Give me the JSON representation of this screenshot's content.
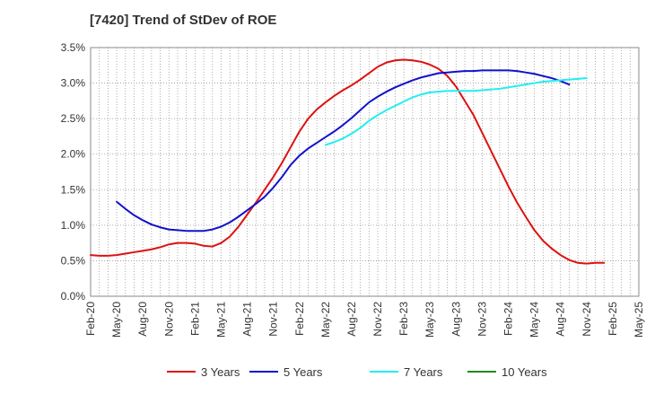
{
  "chart_data": {
    "type": "line",
    "title": "[7420]  Trend of StDev of ROE",
    "xlabel": "",
    "ylabel": "",
    "x_ticks": [
      "Feb-20",
      "May-20",
      "Aug-20",
      "Nov-20",
      "Feb-21",
      "May-21",
      "Aug-21",
      "Nov-21",
      "Feb-22",
      "May-22",
      "Aug-22",
      "Nov-22",
      "Feb-23",
      "May-23",
      "Aug-23",
      "Nov-23",
      "Feb-24",
      "May-24",
      "Aug-24",
      "Nov-24",
      "Feb-25",
      "May-25"
    ],
    "y_ticks": [
      "0.0%",
      "0.5%",
      "1.0%",
      "1.5%",
      "2.0%",
      "2.5%",
      "3.0%",
      "3.5%"
    ],
    "ylim": [
      0,
      3.5
    ],
    "y_unit": "%",
    "grid": true,
    "legend_position": "bottom",
    "x_start": "Feb-20",
    "x_step_months": 1,
    "series": [
      {
        "name": "3 Years",
        "color": "#dd1111",
        "start_index": 0,
        "values": [
          0.58,
          0.57,
          0.57,
          0.58,
          0.6,
          0.62,
          0.64,
          0.66,
          0.69,
          0.73,
          0.75,
          0.75,
          0.74,
          0.71,
          0.7,
          0.75,
          0.84,
          0.98,
          1.15,
          1.32,
          1.5,
          1.68,
          1.88,
          2.1,
          2.32,
          2.5,
          2.63,
          2.73,
          2.82,
          2.9,
          2.97,
          3.05,
          3.14,
          3.23,
          3.29,
          3.32,
          3.33,
          3.32,
          3.3,
          3.26,
          3.2,
          3.1,
          2.95,
          2.75,
          2.55,
          2.3,
          2.05,
          1.8,
          1.55,
          1.32,
          1.12,
          0.93,
          0.78,
          0.67,
          0.58,
          0.51,
          0.47,
          0.46,
          0.47,
          0.47
        ]
      },
      {
        "name": "5 Years",
        "color": "#1111cc",
        "start_index": 3,
        "values": [
          1.33,
          1.23,
          1.14,
          1.07,
          1.01,
          0.97,
          0.94,
          0.93,
          0.92,
          0.92,
          0.92,
          0.94,
          0.98,
          1.04,
          1.12,
          1.21,
          1.3,
          1.4,
          1.53,
          1.68,
          1.85,
          1.98,
          2.08,
          2.16,
          2.24,
          2.32,
          2.41,
          2.51,
          2.62,
          2.73,
          2.81,
          2.88,
          2.94,
          2.99,
          3.04,
          3.08,
          3.11,
          3.14,
          3.15,
          3.16,
          3.17,
          3.17,
          3.18,
          3.18,
          3.18,
          3.18,
          3.17,
          3.15,
          3.13,
          3.1,
          3.07,
          3.03,
          2.98
        ]
      },
      {
        "name": "7 Years",
        "color": "#22eeee",
        "start_index": 27,
        "values": [
          2.13,
          2.17,
          2.22,
          2.29,
          2.37,
          2.47,
          2.55,
          2.62,
          2.68,
          2.74,
          2.8,
          2.84,
          2.87,
          2.88,
          2.89,
          2.89,
          2.89,
          2.89,
          2.9,
          2.91,
          2.92,
          2.94,
          2.96,
          2.98,
          3.0,
          3.02,
          3.03,
          3.04,
          3.05,
          3.06,
          3.07
        ]
      },
      {
        "name": "10 Years",
        "color": "#228822",
        "start_index": 0,
        "values": []
      }
    ]
  }
}
